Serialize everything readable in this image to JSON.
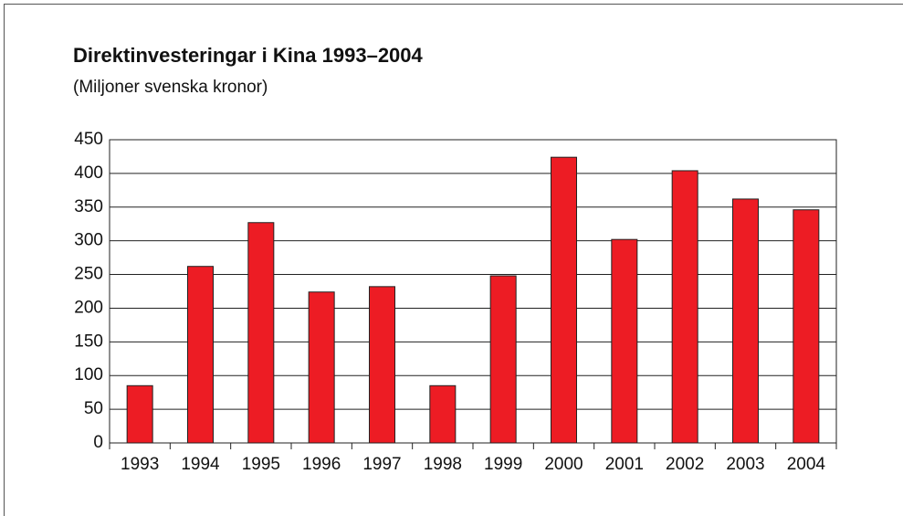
{
  "chart_data": {
    "type": "bar",
    "title": "Direktinvesteringar i Kina 1993–2004",
    "subtitle": "(Miljoner svenska kronor)",
    "categories": [
      "1993",
      "1994",
      "1995",
      "1996",
      "1997",
      "1998",
      "1999",
      "2000",
      "2001",
      "2002",
      "2003",
      "2004"
    ],
    "values": [
      85,
      262,
      327,
      224,
      232,
      85,
      248,
      424,
      302,
      404,
      362,
      346
    ],
    "color": "#ed1c24",
    "ylim": [
      0,
      450
    ],
    "yticks": [
      0,
      50,
      100,
      150,
      200,
      250,
      300,
      350,
      400,
      450
    ],
    "grid": true
  }
}
